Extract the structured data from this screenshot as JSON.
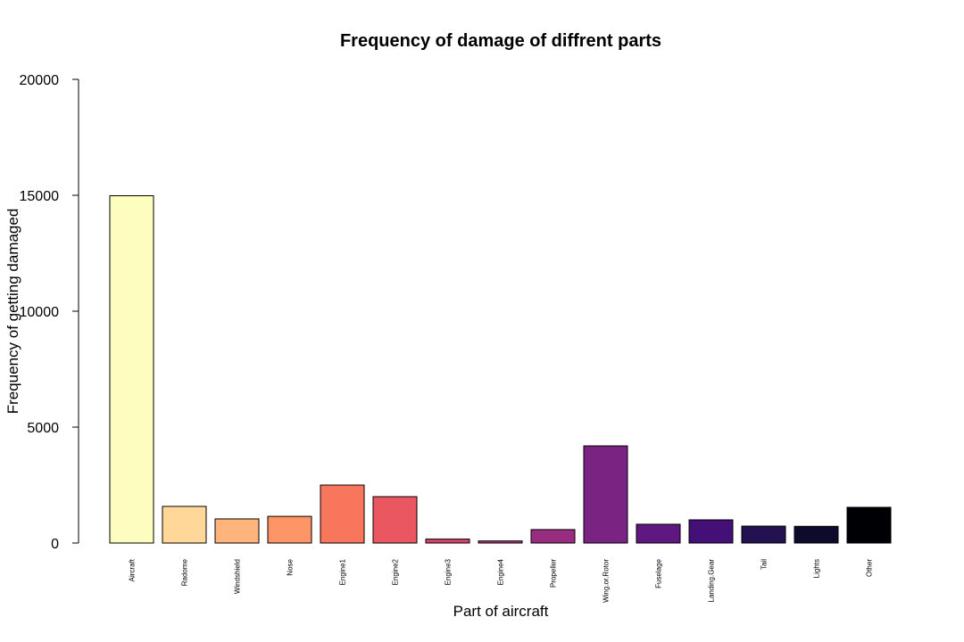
{
  "chart_data": {
    "type": "bar",
    "title": "Frequency of damage of diffrent parts",
    "xlabel": "Part of aircraft",
    "ylabel": "Frequency of getting damaged",
    "ylim": [
      0,
      20000
    ],
    "yticks": [
      0,
      5000,
      10000,
      15000,
      20000
    ],
    "grid": false,
    "legend": "none",
    "categories": [
      "Aircraft",
      "Radome",
      "Windshield",
      "Nose",
      "Engine1",
      "Engine2",
      "Engine3",
      "Engine4",
      "Propeller",
      "Wing.or.Rotor",
      "Fuselage",
      "Landing.Gear",
      "Tail",
      "Lights",
      "Other"
    ],
    "values": [
      14980,
      1580,
      1040,
      1150,
      2500,
      2000,
      170,
      90,
      580,
      4190,
      810,
      1000,
      730,
      720,
      1540
    ],
    "colors": [
      "#FCFDBF",
      "#FED799",
      "#FEB47B",
      "#FD9567",
      "#F8765C",
      "#EB5760",
      "#D3436E",
      "#B73779",
      "#982D80",
      "#7B2382",
      "#5F187F",
      "#440F76",
      "#231151",
      "#0E0A2C",
      "#000004"
    ]
  }
}
